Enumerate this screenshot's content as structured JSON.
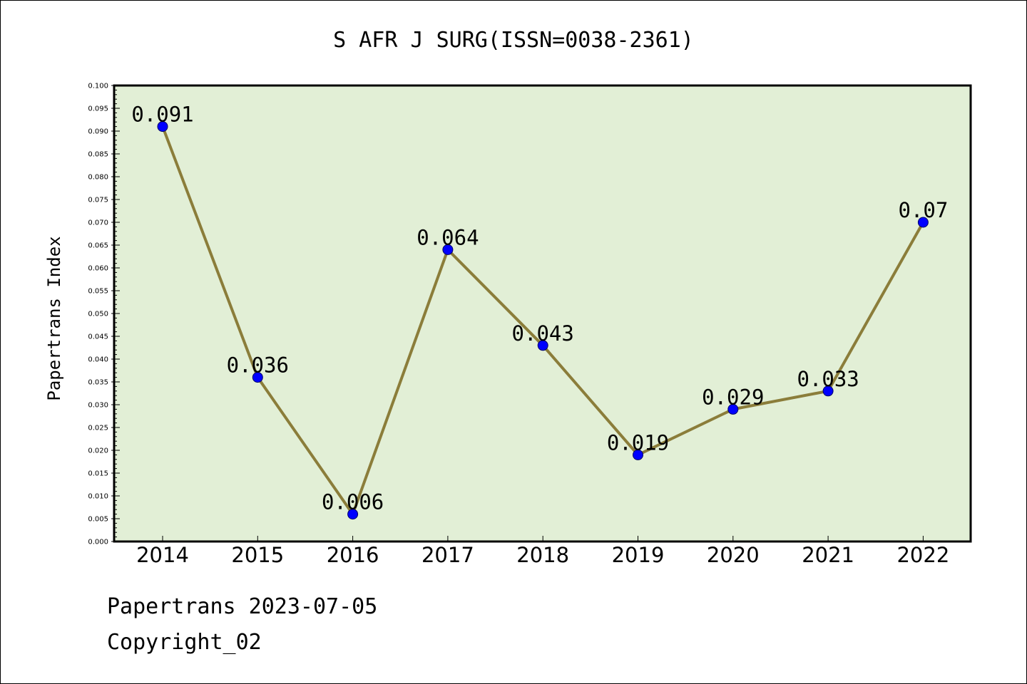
{
  "chart_data": {
    "type": "line",
    "title": "S AFR J SURG(ISSN=0038-2361)",
    "xlabel": "",
    "ylabel": "Papertrans Index",
    "x": [
      "2014",
      "2015",
      "2016",
      "2017",
      "2018",
      "2019",
      "2020",
      "2021",
      "2022"
    ],
    "series": [
      {
        "values": [
          0.091,
          0.036,
          0.006,
          0.064,
          0.043,
          0.019,
          0.029,
          0.033,
          0.07
        ],
        "value_labels": [
          "0.091",
          "0.036",
          "0.006",
          "0.064",
          "0.043",
          "0.019",
          "0.029",
          "0.033",
          "0.07"
        ]
      }
    ],
    "ylim": [
      0,
      0.1
    ],
    "ytick_step": 0.005,
    "grid": false,
    "legend": "none",
    "colors": {
      "plot_background": "#e2efd6",
      "line": "#8b7d3a",
      "marker": "#0000ff"
    }
  },
  "footer": {
    "date_line": "Papertrans 2023-07-05",
    "copyright_line": "Copyright_02"
  }
}
